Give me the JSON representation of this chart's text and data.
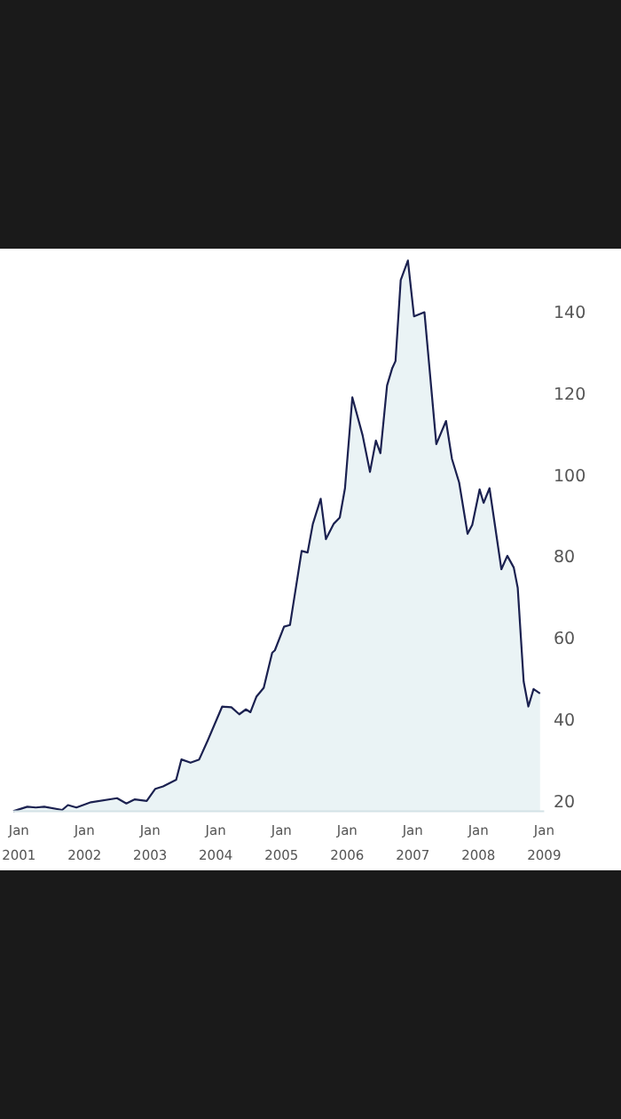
{
  "chart_data": {
    "type": "area",
    "x": [
      "2000-12-01",
      "2001-02-17",
      "2001-04-05",
      "2001-05-22",
      "2001-08-30",
      "2001-10-01",
      "2001-11-17",
      "2002-02-06",
      "2002-07-01",
      "2002-08-22",
      "2002-10-08",
      "2002-12-13",
      "2003-01-30",
      "2003-03-14",
      "2003-05-26",
      "2003-06-24",
      "2003-08-14",
      "2003-10-01",
      "2003-11-17",
      "2004-02-06",
      "2004-03-28",
      "2004-05-11",
      "2004-06-17",
      "2004-07-12",
      "2004-08-14",
      "2004-09-24",
      "2004-11-10",
      "2004-11-25",
      "2005-01-15",
      "2005-02-17",
      "2005-04-23",
      "2005-05-26",
      "2005-06-24",
      "2005-08-07",
      "2005-09-05",
      "2005-10-19",
      "2005-11-21",
      "2005-12-20",
      "2006-01-30",
      "2006-03-28",
      "2006-05-08",
      "2006-06-10",
      "2006-07-05",
      "2006-08-11",
      "2006-09-09",
      "2006-09-27",
      "2006-10-26",
      "2006-12-05",
      "2007-01-08",
      "2007-03-07",
      "2007-05-12",
      "2007-07-05",
      "2007-08-07",
      "2007-09-16",
      "2007-11-02",
      "2007-11-28",
      "2008-01-08",
      "2008-01-30",
      "2008-03-03",
      "2008-05-08",
      "2008-06-10",
      "2008-07-16",
      "2008-08-07",
      "2008-09-09",
      "2008-10-05",
      "2008-11-03",
      "2008-12-09"
    ],
    "series": [
      {
        "color": "#1b2150",
        "values": [
          17.5,
          18.6,
          18.4,
          18.6,
          17.8,
          19,
          18.4,
          19.7,
          20.7,
          19.4,
          20.4,
          20,
          23,
          23.6,
          25.2,
          30.2,
          29.4,
          30.2,
          34.8,
          43.2,
          43,
          41.3,
          42.5,
          41.8,
          45.6,
          47.8,
          56.4,
          57,
          62.8,
          63.2,
          81.4,
          81,
          88,
          94.2,
          84.3,
          88.1,
          89.6,
          96.8,
          119.1,
          109.8,
          100.8,
          108.5,
          105.4,
          122,
          126.3,
          128,
          147.9,
          152.7,
          139,
          140,
          107.6,
          113.3,
          104,
          98.2,
          85.6,
          87.8,
          96.5,
          93.2,
          96.8,
          76.9,
          80.2,
          77.3,
          72.3,
          49.3,
          43.2,
          47.5,
          46.4
        ]
      }
    ],
    "xlim": [
      "2000-12-01",
      "2009-01-01"
    ],
    "xticks": [
      {
        "value": "2001-01",
        "label": "Jan 2001"
      },
      {
        "value": "2002-01",
        "label": "Jan 2002"
      },
      {
        "value": "2003-01",
        "label": "Jan 2003"
      },
      {
        "value": "2004-01",
        "label": "Jan 2004"
      },
      {
        "value": "2005-01",
        "label": "Jan 2005"
      },
      {
        "value": "2006-01",
        "label": "Jan 2006"
      },
      {
        "value": "2007-01",
        "label": "Jan 2007"
      },
      {
        "value": "2008-01",
        "label": "Jan 2008"
      },
      {
        "value": "2009-01",
        "label": "Jan 2009"
      }
    ],
    "ylim": [
      17.5,
      155
    ],
    "yticks": [
      20,
      40,
      60,
      80,
      100,
      120,
      140
    ],
    "grid": false
  }
}
